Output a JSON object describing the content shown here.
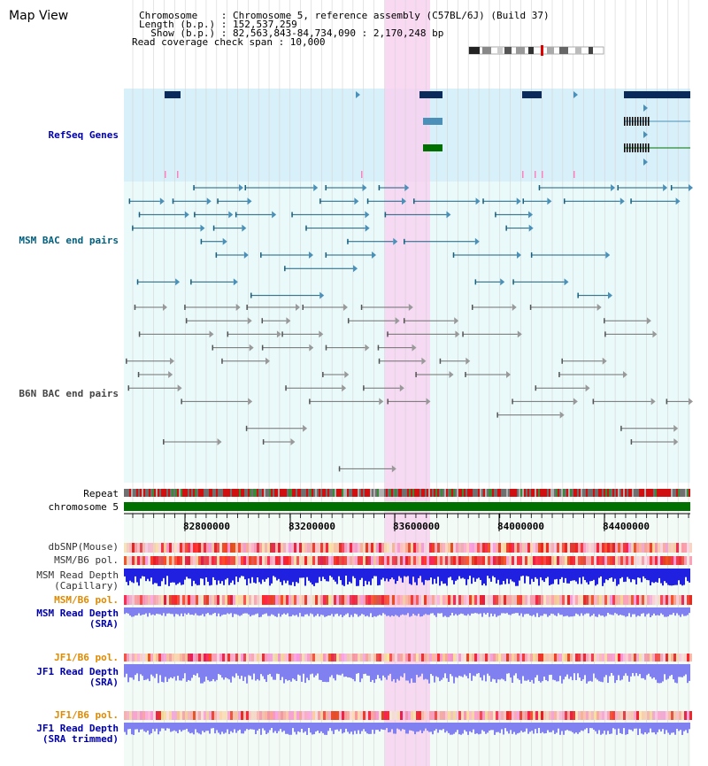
{
  "header": {
    "view_title": "Map View",
    "info_lines": [
      "Chromosome    : Chromosome 5, reference assembly (C57BL/6J) (Build 37)",
      "Length (b.p.) : 152,537,259",
      "  Show (b.p.) : 82,563,843-84,734,090 : 2,170,248 bp",
      "Read coverage check span : 10,000"
    ]
  },
  "tracks": {
    "refseq": "RefSeq Genes",
    "msm_bac": "MSM BAC end pairs",
    "b6n_bac": "B6N BAC end pairs",
    "repeat": "Repeat",
    "chromosome": "chromosome 5",
    "dbsnp": "dbSNP(Mouse)",
    "msm_b6_pol_1": "MSM/B6 pol.",
    "msm_depth_cap": "MSM Read Depth",
    "msm_depth_cap_sub": "(Capillary)",
    "msm_b6_pol_2": "MSM/B6 pol.",
    "msm_depth_sra": "MSM Read Depth",
    "msm_depth_sra_sub": "(SRA)",
    "jf1_b6_pol_1": "JF1/B6 pol.",
    "jf1_depth_sra": "JF1 Read Depth",
    "jf1_depth_sra_sub": "(SRA)",
    "jf1_b6_pol_2": "JF1/B6 pol.",
    "jf1_depth_trim": "JF1 Read Depth",
    "jf1_depth_trim_sub": "(SRA trimmed)"
  },
  "axis": {
    "ticks": [
      "82800000",
      "83200000",
      "83600000",
      "84000000",
      "84400000"
    ]
  },
  "colors": {
    "refseq_bg": "#d8f0fa",
    "bac_bg": "#e8fafa",
    "highlight": "#f8d0f0",
    "gene_navy": "#0a2a5c",
    "gene_teal": "#4a90b8",
    "gene_green": "#007000",
    "msm_bac": "#1a6080",
    "b6n_bac": "#707070",
    "chromosome": "#007000",
    "depth_blue": "#2020e0",
    "depth_light": "#8080f0"
  }
}
